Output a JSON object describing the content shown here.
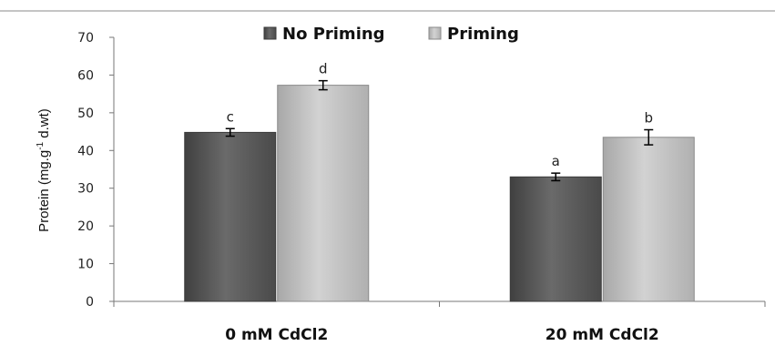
{
  "chart_data": {
    "type": "bar",
    "categories": [
      "0 mM CdCl2",
      "20 mM CdCl2"
    ],
    "series": [
      {
        "name": "No Priming",
        "values": [
          44.8,
          33.0
        ],
        "errors": [
          1.0,
          1.0
        ],
        "labels": [
          "c",
          "a"
        ],
        "color": "#5c5c5c"
      },
      {
        "name": "Priming",
        "values": [
          57.3,
          43.5
        ],
        "errors": [
          1.2,
          2.0
        ],
        "labels": [
          "d",
          "b"
        ],
        "color": "#bdbdbd"
      }
    ],
    "ylabel": {
      "main": "Protein (mg.g",
      "superscript": "-1",
      "rest": " d.wt)"
    },
    "ylim": [
      0,
      70
    ],
    "yticks": [
      "0",
      "10",
      "20",
      "30",
      "40",
      "50",
      "60",
      "70"
    ],
    "grid": false,
    "legend_position": "top-center"
  }
}
